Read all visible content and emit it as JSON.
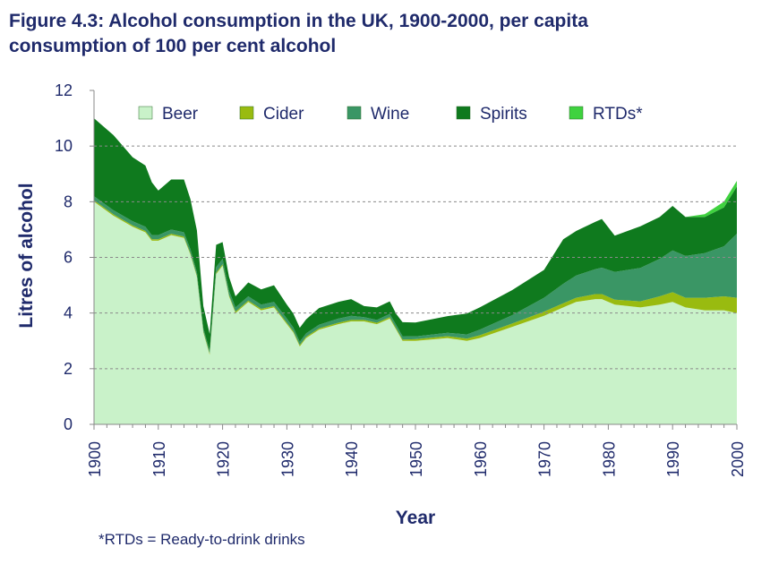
{
  "title": {
    "line1": "Figure 4.3: Alcohol consumption in the UK, 1900-2000, per capita",
    "line2": "consumption of 100 per cent alcohol"
  },
  "footnote": "*RTDs = Ready-to-drink drinks",
  "chart_data": {
    "type": "area",
    "stacked": true,
    "xlabel": "Year",
    "ylabel": "Litres of alcohol",
    "xlim": [
      1900,
      2000
    ],
    "ylim": [
      0,
      12
    ],
    "yticks": [
      0,
      2,
      4,
      6,
      8,
      10,
      12
    ],
    "xticks": [
      1900,
      1910,
      1920,
      1930,
      1940,
      1950,
      1960,
      1970,
      1980,
      1990,
      2000
    ],
    "grid": "horizontal dashed at 2, 4, 6, 8, 10",
    "legend_position": "top",
    "x": [
      1900,
      1903,
      1906,
      1908,
      1909,
      1910,
      1912,
      1914,
      1915,
      1916,
      1917,
      1918,
      1919,
      1920,
      1921,
      1922,
      1924,
      1926,
      1928,
      1930,
      1931,
      1932,
      1933,
      1935,
      1938,
      1940,
      1942,
      1944,
      1946,
      1947,
      1948,
      1950,
      1955,
      1958,
      1960,
      1965,
      1970,
      1973,
      1975,
      1978,
      1979,
      1981,
      1985,
      1988,
      1990,
      1992,
      1995,
      1998,
      2000
    ],
    "series": [
      {
        "name": "Beer",
        "color": "#c9f2c9",
        "values": [
          8.0,
          7.5,
          7.1,
          6.9,
          6.6,
          6.6,
          6.8,
          6.7,
          6.1,
          5.3,
          3.3,
          2.5,
          5.4,
          5.7,
          4.6,
          4.0,
          4.4,
          4.1,
          4.2,
          3.6,
          3.3,
          2.8,
          3.1,
          3.4,
          3.6,
          3.7,
          3.7,
          3.6,
          3.8,
          3.4,
          3.0,
          3.0,
          3.1,
          3.0,
          3.1,
          3.5,
          3.9,
          4.2,
          4.4,
          4.5,
          4.5,
          4.3,
          4.2,
          4.3,
          4.4,
          4.2,
          4.1,
          4.1,
          4.0
        ]
      },
      {
        "name": "Cider",
        "color": "#99bb10",
        "values": [
          0.05,
          0.05,
          0.05,
          0.05,
          0.05,
          0.05,
          0.05,
          0.05,
          0.05,
          0.05,
          0.05,
          0.05,
          0.05,
          0.05,
          0.05,
          0.05,
          0.05,
          0.05,
          0.05,
          0.05,
          0.05,
          0.05,
          0.05,
          0.05,
          0.05,
          0.05,
          0.05,
          0.05,
          0.05,
          0.05,
          0.05,
          0.06,
          0.07,
          0.08,
          0.1,
          0.12,
          0.15,
          0.15,
          0.15,
          0.18,
          0.18,
          0.18,
          0.22,
          0.3,
          0.35,
          0.35,
          0.45,
          0.5,
          0.55
        ]
      },
      {
        "name": "Wine",
        "color": "#3a9665",
        "values": [
          0.15,
          0.15,
          0.15,
          0.15,
          0.15,
          0.15,
          0.15,
          0.15,
          0.14,
          0.12,
          0.1,
          0.1,
          0.2,
          0.2,
          0.15,
          0.15,
          0.15,
          0.15,
          0.15,
          0.15,
          0.13,
          0.12,
          0.12,
          0.13,
          0.15,
          0.15,
          0.1,
          0.1,
          0.12,
          0.12,
          0.12,
          0.1,
          0.12,
          0.15,
          0.2,
          0.3,
          0.5,
          0.7,
          0.8,
          0.9,
          0.95,
          1.0,
          1.2,
          1.35,
          1.5,
          1.5,
          1.6,
          1.8,
          2.3
        ]
      },
      {
        "name": "Spirits",
        "color": "#0f7a1e",
        "values": [
          2.8,
          2.7,
          2.3,
          2.2,
          1.9,
          1.6,
          1.8,
          1.9,
          1.8,
          1.5,
          0.8,
          0.6,
          0.8,
          0.6,
          0.5,
          0.4,
          0.5,
          0.55,
          0.6,
          0.5,
          0.5,
          0.5,
          0.5,
          0.6,
          0.6,
          0.6,
          0.4,
          0.45,
          0.45,
          0.4,
          0.5,
          0.5,
          0.6,
          0.75,
          0.8,
          0.9,
          1.0,
          1.6,
          1.6,
          1.7,
          1.75,
          1.3,
          1.5,
          1.5,
          1.6,
          1.4,
          1.3,
          1.4,
          1.7
        ]
      },
      {
        "name": "RTDs*",
        "color": "#3fd23f",
        "values": [
          0,
          0,
          0,
          0,
          0,
          0,
          0,
          0,
          0,
          0,
          0,
          0,
          0,
          0,
          0,
          0,
          0,
          0,
          0,
          0,
          0,
          0,
          0,
          0,
          0,
          0,
          0,
          0,
          0,
          0,
          0,
          0,
          0,
          0,
          0,
          0,
          0,
          0,
          0,
          0,
          0,
          0,
          0,
          0,
          0,
          0,
          0.1,
          0.2,
          0.2
        ]
      }
    ]
  }
}
